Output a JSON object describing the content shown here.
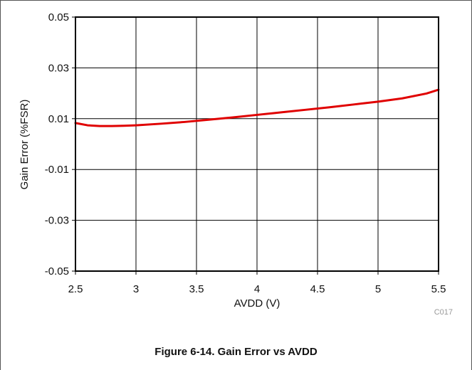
{
  "chart_data": {
    "type": "line",
    "ylabel": "Gain Error (%FSR)",
    "xlabel": "AVDD (V)",
    "code": "C017",
    "xlim": [
      2.5,
      5.5
    ],
    "ylim": [
      -0.05,
      0.05
    ],
    "x_ticks": [
      2.5,
      3,
      3.5,
      4,
      4.5,
      5,
      5.5
    ],
    "x_tick_labels": [
      "2.5",
      "3",
      "3.5",
      "4",
      "4.5",
      "5",
      "5.5"
    ],
    "y_ticks": [
      0.05,
      0.03,
      0.01,
      -0.01,
      -0.03,
      -0.05
    ],
    "y_tick_labels": [
      "0.05",
      "0.03",
      "0.01",
      "-0.01",
      "-0.03",
      "-0.05"
    ],
    "grid": true,
    "series": [
      {
        "color": "#e00000",
        "x": [
          2.5,
          2.6,
          2.7,
          2.8,
          2.9,
          3.0,
          3.2,
          3.4,
          3.6,
          3.8,
          4.0,
          4.2,
          4.4,
          4.6,
          4.8,
          5.0,
          5.2,
          5.4,
          5.5
        ],
        "y": [
          0.0083,
          0.0074,
          0.0071,
          0.0071,
          0.0072,
          0.0074,
          0.008,
          0.0087,
          0.0096,
          0.0105,
          0.0115,
          0.0125,
          0.0135,
          0.0145,
          0.0156,
          0.0167,
          0.018,
          0.0199,
          0.0214
        ]
      }
    ]
  },
  "caption": "Figure 6-14. Gain Error vs AVDD"
}
